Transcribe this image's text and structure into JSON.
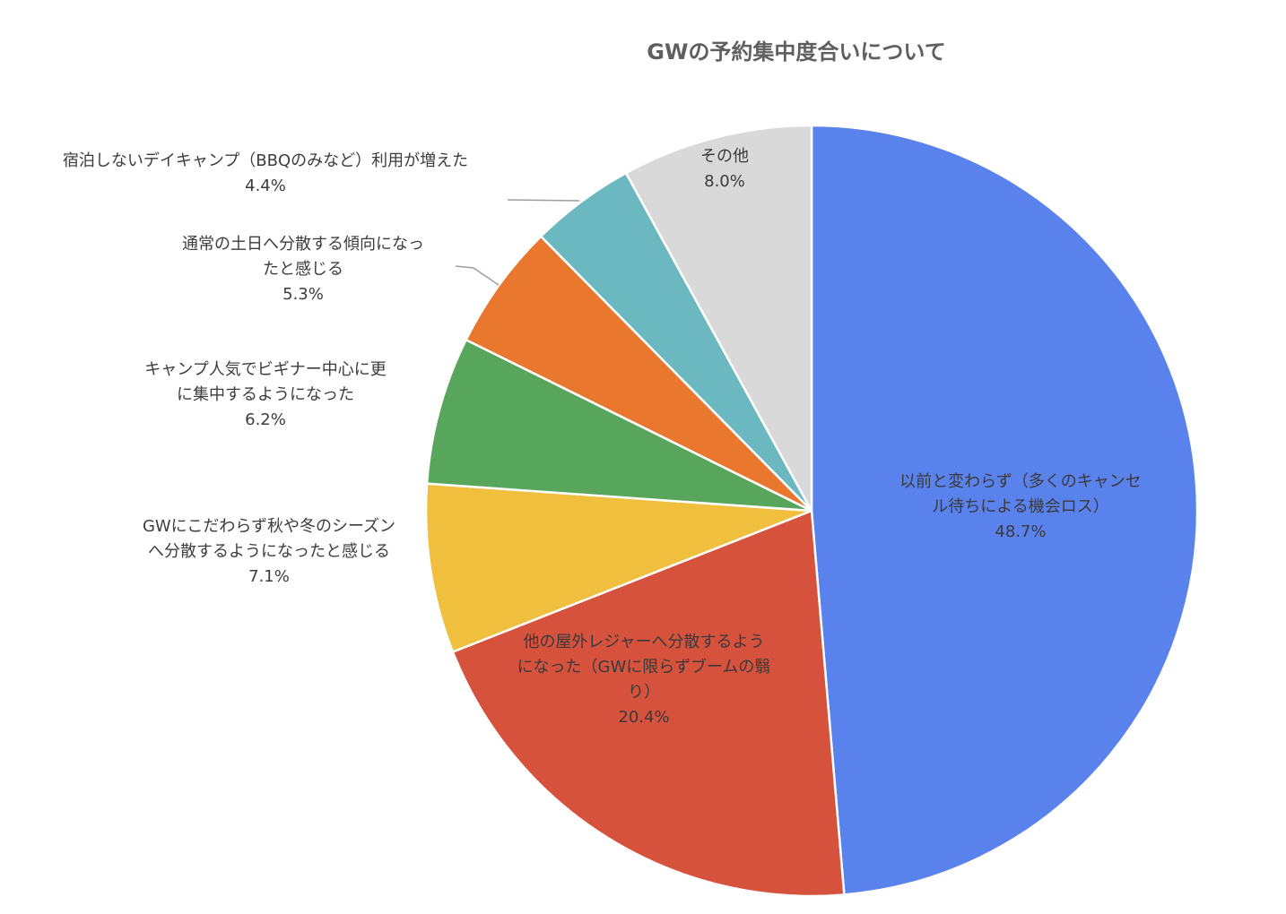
{
  "chart_data": {
    "type": "pie",
    "title": "GWの予約集中度合いについて",
    "slices": [
      {
        "key": "no-change",
        "lines": [
          "以前と変わらず（多くのキャンセ",
          "ル待ちによる機会ロス）"
        ],
        "percent_label": "48.7%",
        "value": 48.7,
        "color": "#5a82ec"
      },
      {
        "key": "other-leisure",
        "lines": [
          "他の屋外レジャーへ分散するよう",
          "になった（GWに限らずブームの翳",
          "り）"
        ],
        "percent_label": "20.4%",
        "value": 20.4,
        "color": "#d6523c"
      },
      {
        "key": "autumn-winter",
        "lines": [
          "GWにこだわらず秋や冬のシーズン",
          "へ分散するようになったと感じる"
        ],
        "percent_label": "7.1%",
        "value": 7.1,
        "color": "#efbf3d"
      },
      {
        "key": "beginner",
        "lines": [
          "キャンプ人気でビギナー中心に更",
          "に集中するようになった"
        ],
        "percent_label": "6.2%",
        "value": 6.2,
        "color": "#58a55c"
      },
      {
        "key": "weekend",
        "lines": [
          "通常の土日へ分散する傾向になっ",
          "たと感じる"
        ],
        "percent_label": "5.3%",
        "value": 5.3,
        "color": "#e9772e"
      },
      {
        "key": "day-camp",
        "lines": [
          "宿泊しないデイキャンプ（BBQのみなど）利用が増えた"
        ],
        "percent_label": "4.4%",
        "value": 4.4,
        "color": "#6cb8c1"
      },
      {
        "key": "other",
        "lines": [
          "その他"
        ],
        "percent_label": "8.0%",
        "value": 8.0,
        "color": "#d9d9d9"
      }
    ]
  }
}
